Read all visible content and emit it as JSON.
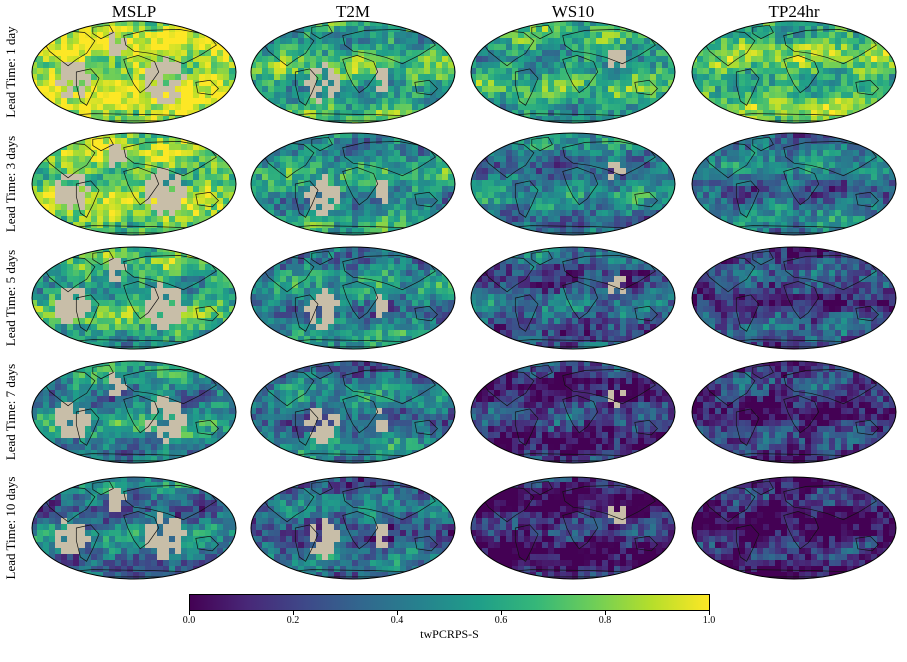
{
  "columns": [
    "MSLP",
    "T2M",
    "WS10",
    "TP24hr"
  ],
  "rows": [
    "Lead Time: 1 day",
    "Lead Time: 3 days",
    "Lead Time: 5 days",
    "Lead Time: 7 days",
    "Lead Time: 10 days"
  ],
  "colorbar": {
    "label": "twPCRPS-S",
    "colormap": "viridis",
    "range": [
      0.0,
      1.0
    ],
    "ticks": [
      "0.0",
      "0.2",
      "0.4",
      "0.6",
      "0.8",
      "1.0"
    ],
    "gradient_colors": [
      "#440154",
      "#482878",
      "#3e4989",
      "#31688e",
      "#26828e",
      "#1f9e89",
      "#35b779",
      "#6ece58",
      "#b5de2b",
      "#fde725"
    ]
  },
  "masked_color": "#c8bea8",
  "projection": "Robinson (global)",
  "panel_mean_score": [
    [
      0.88,
      0.62,
      0.6,
      0.7
    ],
    [
      0.78,
      0.52,
      0.42,
      0.38
    ],
    [
      0.62,
      0.45,
      0.3,
      0.22
    ],
    [
      0.48,
      0.4,
      0.15,
      0.15
    ],
    [
      0.38,
      0.32,
      0.08,
      0.08
    ]
  ]
}
